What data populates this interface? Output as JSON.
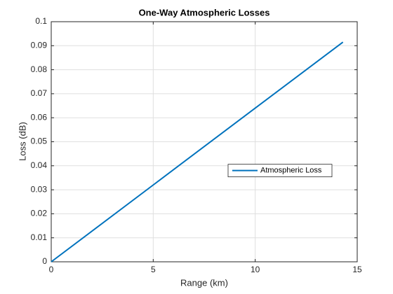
{
  "chart_data": {
    "type": "line",
    "title": "One-Way Atmospheric Losses",
    "x_label": "Range (km)",
    "y_label": "Loss (dB)",
    "x": [
      0,
      5,
      10,
      14.3
    ],
    "series": [
      {
        "name": "Atmospheric Loss",
        "color": "#0072bd",
        "values": [
          0,
          0.032,
          0.064,
          0.0915
        ]
      }
    ],
    "xlim": [
      0,
      15
    ],
    "xticks": [
      0,
      5,
      10,
      15
    ],
    "ylim": [
      0,
      0.1
    ],
    "yticks": [
      0,
      0.01,
      0.02,
      0.03,
      0.04,
      0.05,
      0.06,
      0.07,
      0.08,
      0.09,
      0.1
    ],
    "grid": true,
    "legend": "east"
  }
}
